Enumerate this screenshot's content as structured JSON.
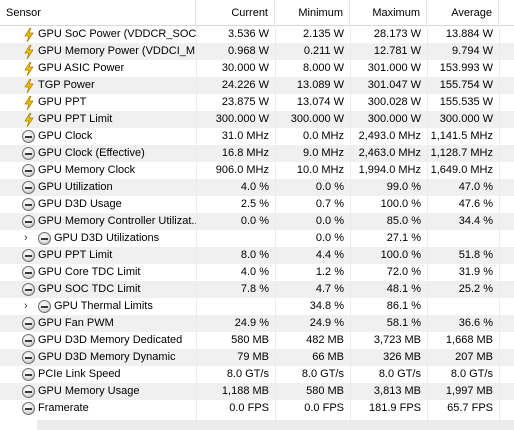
{
  "columns": {
    "sensor": "Sensor",
    "current": "Current",
    "minimum": "Minimum",
    "maximum": "Maximum",
    "average": "Average"
  },
  "rows": [
    {
      "icon": "power-bolt-icon",
      "name": "GPU SoC Power (VDDCR_SOC)",
      "current": "3.536 W",
      "minimum": "2.135 W",
      "maximum": "28.173 W",
      "average": "13.884 W"
    },
    {
      "icon": "power-bolt-icon",
      "name": "GPU Memory Power (VDDCI_M...",
      "current": "0.968 W",
      "minimum": "0.211 W",
      "maximum": "12.781 W",
      "average": "9.794 W"
    },
    {
      "icon": "power-bolt-icon",
      "name": "GPU ASIC Power",
      "current": "30.000 W",
      "minimum": "8.000 W",
      "maximum": "301.000 W",
      "average": "153.993 W"
    },
    {
      "icon": "power-bolt-icon",
      "name": "TGP Power",
      "current": "24.226 W",
      "minimum": "13.089 W",
      "maximum": "301.047 W",
      "average": "155.754 W"
    },
    {
      "icon": "power-bolt-icon",
      "name": "GPU PPT",
      "current": "23.875 W",
      "minimum": "13.074 W",
      "maximum": "300.028 W",
      "average": "155.535 W"
    },
    {
      "icon": "power-bolt-icon",
      "name": "GPU PPT Limit",
      "current": "300.000 W",
      "minimum": "300.000 W",
      "maximum": "300.000 W",
      "average": "300.000 W"
    },
    {
      "icon": "gauge-icon",
      "name": "GPU Clock",
      "current": "31.0 MHz",
      "minimum": "0.0 MHz",
      "maximum": "2,493.0 MHz",
      "average": "1,141.5 MHz"
    },
    {
      "icon": "gauge-icon",
      "name": "GPU Clock (Effective)",
      "current": "16.8 MHz",
      "minimum": "9.0 MHz",
      "maximum": "2,463.0 MHz",
      "average": "1,128.7 MHz"
    },
    {
      "icon": "gauge-icon",
      "name": "GPU Memory Clock",
      "current": "906.0 MHz",
      "minimum": "10.0 MHz",
      "maximum": "1,994.0 MHz",
      "average": "1,649.0 MHz"
    },
    {
      "icon": "gauge-icon",
      "name": "GPU Utilization",
      "current": "4.0 %",
      "minimum": "0.0 %",
      "maximum": "99.0 %",
      "average": "47.0 %"
    },
    {
      "icon": "gauge-icon",
      "name": "GPU D3D Usage",
      "current": "2.5 %",
      "minimum": "0.7 %",
      "maximum": "100.0 %",
      "average": "47.6 %"
    },
    {
      "icon": "gauge-icon",
      "name": "GPU Memory Controller Utilizat...",
      "current": "0.0 %",
      "minimum": "0.0 %",
      "maximum": "85.0 %",
      "average": "34.4 %"
    },
    {
      "icon": "gauge-icon",
      "name": "GPU D3D Utilizations",
      "current": "",
      "minimum": "0.0 %",
      "maximum": "27.1 %",
      "average": "",
      "child": true,
      "expander": "›"
    },
    {
      "icon": "gauge-icon",
      "name": "GPU PPT Limit",
      "current": "8.0 %",
      "minimum": "4.4 %",
      "maximum": "100.0 %",
      "average": "51.8 %"
    },
    {
      "icon": "gauge-icon",
      "name": "GPU Core TDC Limit",
      "current": "4.0 %",
      "minimum": "1.2 %",
      "maximum": "72.0 %",
      "average": "31.9 %"
    },
    {
      "icon": "gauge-icon",
      "name": "GPU SOC TDC Limit",
      "current": "7.8 %",
      "minimum": "4.7 %",
      "maximum": "48.1 %",
      "average": "25.2 %"
    },
    {
      "icon": "gauge-icon",
      "name": "GPU Thermal Limits",
      "current": "",
      "minimum": "34.8 %",
      "maximum": "86.1 %",
      "average": "",
      "child": true,
      "expander": "›"
    },
    {
      "icon": "gauge-icon",
      "name": "GPU Fan PWM",
      "current": "24.9 %",
      "minimum": "24.9 %",
      "maximum": "58.1 %",
      "average": "36.6 %"
    },
    {
      "icon": "gauge-icon",
      "name": "GPU D3D Memory Dedicated",
      "current": "580 MB",
      "minimum": "482 MB",
      "maximum": "3,723 MB",
      "average": "1,668 MB"
    },
    {
      "icon": "gauge-icon",
      "name": "GPU D3D Memory Dynamic",
      "current": "79 MB",
      "minimum": "66 MB",
      "maximum": "326 MB",
      "average": "207 MB"
    },
    {
      "icon": "gauge-icon",
      "name": "PCIe Link Speed",
      "current": "8.0 GT/s",
      "minimum": "8.0 GT/s",
      "maximum": "8.0 GT/s",
      "average": "8.0 GT/s"
    },
    {
      "icon": "gauge-icon",
      "name": "GPU Memory Usage",
      "current": "1,188 MB",
      "minimum": "580 MB",
      "maximum": "3,813 MB",
      "average": "1,997 MB"
    },
    {
      "icon": "gauge-icon",
      "name": "Framerate",
      "current": "0.0 FPS",
      "minimum": "0.0 FPS",
      "maximum": "181.9 FPS",
      "average": "65.7 FPS"
    }
  ]
}
